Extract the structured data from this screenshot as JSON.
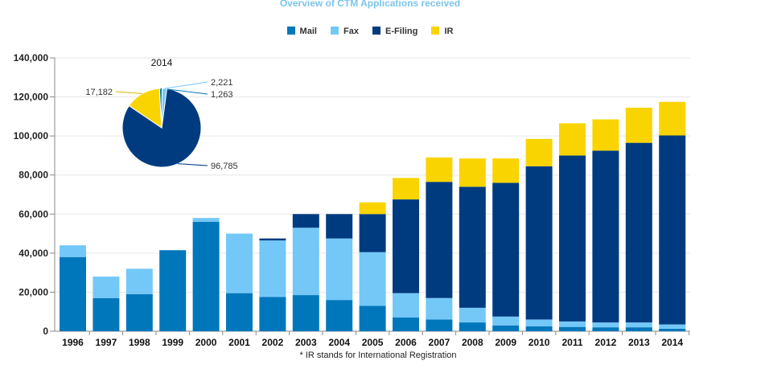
{
  "chart_data": {
    "type": "bar",
    "stacked": true,
    "title": "Overview of CTM Applications received",
    "xlabel": "",
    "ylabel": "",
    "ylim": [
      0,
      140000
    ],
    "yticks": [
      0,
      20000,
      40000,
      60000,
      80000,
      100000,
      120000,
      140000
    ],
    "ytick_labels": [
      "0",
      "20,000",
      "40,000",
      "60,000",
      "80,000",
      "100,000",
      "120,000",
      "140,000"
    ],
    "grid": true,
    "legend_position": "top-center",
    "categories": [
      "1996",
      "1997",
      "1998",
      "1999",
      "2000",
      "2001",
      "2002",
      "2003",
      "2004",
      "2005",
      "2006",
      "2007",
      "2008",
      "2009",
      "2010",
      "2011",
      "2012",
      "2013",
      "2014"
    ],
    "series": [
      {
        "name": "Mail",
        "color": "#0077bb",
        "values": [
          38000,
          17000,
          19000,
          41500,
          56000,
          19500,
          17500,
          18500,
          16000,
          13000,
          7000,
          6000,
          4500,
          3000,
          2500,
          2200,
          2000,
          2000,
          1263
        ]
      },
      {
        "name": "Fax",
        "color": "#74c8f8",
        "values": [
          6000,
          11000,
          13000,
          0,
          2000,
          30500,
          29000,
          34500,
          31500,
          27500,
          12500,
          11000,
          7500,
          4500,
          3500,
          2800,
          2500,
          2500,
          2221
        ]
      },
      {
        "name": "E-Filing",
        "color": "#003b80",
        "values": [
          0,
          0,
          0,
          0,
          0,
          0,
          1000,
          7000,
          12500,
          19500,
          48000,
          59500,
          62000,
          68500,
          78500,
          85000,
          88000,
          92000,
          96785
        ]
      },
      {
        "name": "IR",
        "color": "#fad400",
        "values": [
          0,
          0,
          0,
          0,
          0,
          0,
          0,
          0,
          0,
          6000,
          11000,
          12500,
          14500,
          12500,
          14000,
          16500,
          16000,
          18000,
          17182
        ]
      }
    ],
    "inset_pie": {
      "type": "pie",
      "title": "2014",
      "slices": [
        {
          "name": "E-Filing",
          "value": 96785,
          "label": "96,785",
          "color": "#003b80"
        },
        {
          "name": "IR",
          "value": 17182,
          "label": "17,182",
          "color": "#fad400"
        },
        {
          "name": "Mail",
          "value": 1263,
          "label": "1,263",
          "color": "#0077bb"
        },
        {
          "name": "Fax",
          "value": 2221,
          "label": "2,221",
          "color": "#74c8f8"
        }
      ]
    },
    "footnote": "* IR stands for International Registration"
  }
}
